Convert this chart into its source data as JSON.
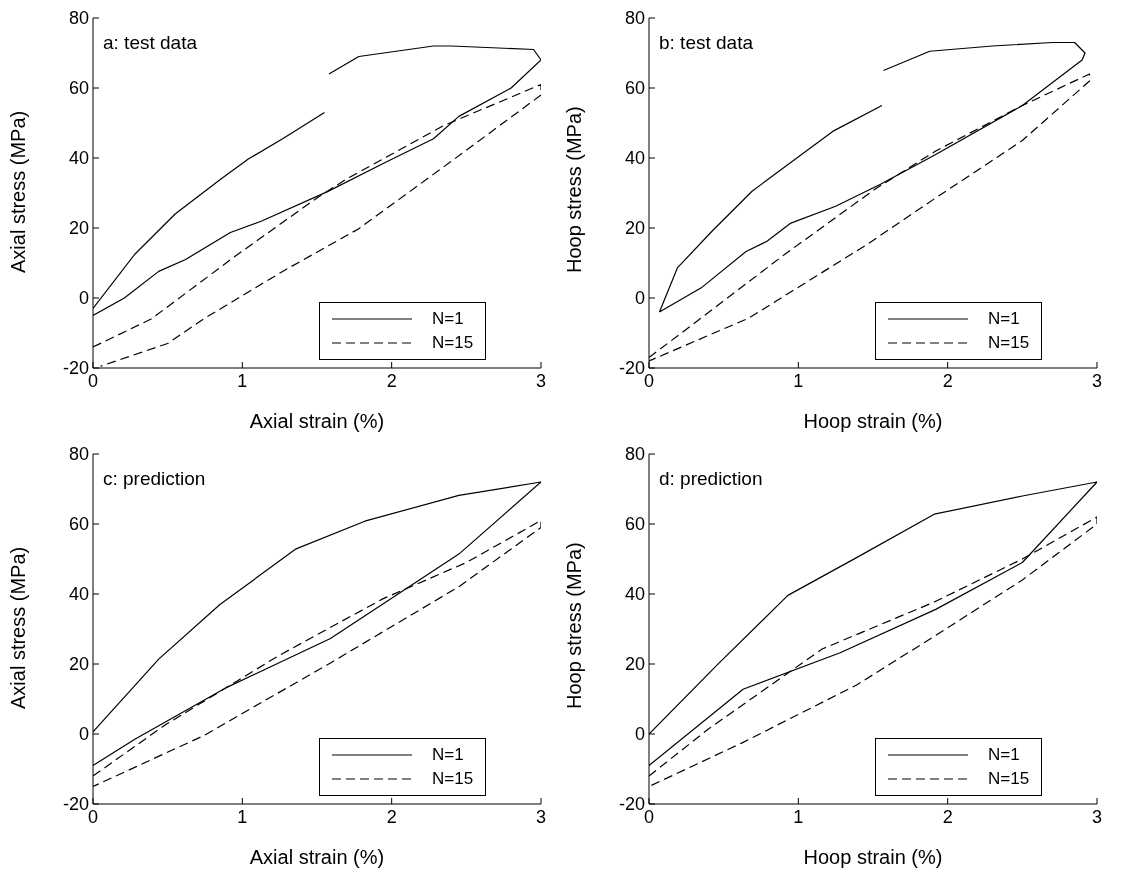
{
  "chart_data": [
    {
      "type": "line",
      "title": "a: test data",
      "xlabel": "Axial strain (%)",
      "ylabel": "Axial stress (MPa)",
      "xlim": [
        0,
        3
      ],
      "xticks": [
        0,
        1,
        2,
        3
      ],
      "ylim": [
        -20,
        80
      ],
      "yticks": [
        -20,
        0,
        20,
        40,
        60,
        80
      ],
      "legend": "bottom right",
      "series": [
        {
          "name": "N=1",
          "color": "#000000",
          "line_style": "solid",
          "x": [
            0,
            0.21,
            0.44,
            0.62,
            0.92,
            1.13,
            1.57,
            1.96,
            2.28,
            2.45,
            2.8,
            3.0,
            2.95,
            2.4,
            2.28,
            1.78,
            1.58,
            null,
            1.55,
            1.27,
            1.04,
            0.85,
            0.55,
            0.28,
            0
          ],
          "values": [
            -5,
            0,
            7.6,
            11,
            18.7,
            22,
            30.4,
            38.8,
            45.5,
            51.9,
            60,
            68,
            71,
            72,
            72,
            69,
            64,
            null,
            53,
            45.5,
            39.7,
            33.8,
            24,
            12.5,
            -3
          ]
        },
        {
          "name": "N=15",
          "color": "#000000",
          "line_style": "dashed",
          "x": [
            0,
            0.39,
            0.97,
            1.5,
            1.69,
            2.35,
            3.0,
            3.0,
            2.42,
            1.78,
            1.27,
            0.74,
            0.5,
            0.05
          ],
          "values": [
            -14,
            -6,
            12.5,
            28.6,
            33.8,
            49.3,
            61,
            58,
            39.7,
            19.8,
            7.6,
            -6,
            -13,
            -19.5
          ]
        }
      ]
    },
    {
      "type": "line",
      "title": "b: test data",
      "xlabel": "Hoop strain (%)",
      "ylabel": "Hoop stress (MPa)",
      "xlim": [
        0,
        3
      ],
      "xticks": [
        0,
        1,
        2,
        3
      ],
      "ylim": [
        -20,
        80
      ],
      "yticks": [
        -20,
        0,
        20,
        40,
        60,
        80
      ],
      "legend": "bottom right",
      "series": [
        {
          "name": "N=1",
          "color": "#000000",
          "line_style": "solid",
          "x": [
            0.07,
            0.35,
            0.65,
            0.79,
            0.95,
            1.25,
            1.55,
            1.92,
            2.5,
            2.9,
            2.92,
            2.85,
            2.7,
            2.3,
            1.88,
            1.57,
            null,
            1.56,
            1.23,
            0.69,
            0.42,
            0.19,
            0.07
          ],
          "values": [
            -4,
            2.9,
            13.3,
            16.2,
            21.4,
            26.2,
            32.5,
            41,
            55,
            68,
            70,
            73,
            73,
            72,
            70.5,
            65,
            null,
            55,
            47.6,
            30.5,
            19,
            8.6,
            -4
          ]
        },
        {
          "name": "N=15",
          "color": "#000000",
          "line_style": "dashed",
          "x": [
            0,
            0.35,
            0.91,
            1.51,
            1.92,
            2.5,
            2.95,
            2.95,
            2.5,
            1.92,
            1.46,
            0.67,
            0
          ],
          "values": [
            -17,
            -5.7,
            12.5,
            31,
            42,
            55,
            64,
            62,
            45,
            28.6,
            15.3,
            -5.7,
            -18
          ]
        }
      ]
    },
    {
      "type": "line",
      "title": "c: prediction",
      "xlabel": "Axial strain (%)",
      "ylabel": "Axial stress (MPa)",
      "xlim": [
        0,
        3
      ],
      "xticks": [
        0,
        1,
        2,
        3
      ],
      "ylim": [
        -20,
        80
      ],
      "yticks": [
        -20,
        0,
        20,
        40,
        60,
        80
      ],
      "legend": "bottom right",
      "series": [
        {
          "name": "N=1",
          "color": "#000000",
          "line_style": "solid",
          "x": [
            0,
            0.44,
            0.85,
            1.36,
            1.82,
            2.45,
            3.0,
            2.45,
            1.59,
            0.9,
            0.28,
            0
          ],
          "values": [
            0.6,
            21.4,
            37,
            52.9,
            60.8,
            68.2,
            72,
            51.4,
            27.3,
            13.4,
            -1.5,
            -9
          ]
        },
        {
          "name": "N=15",
          "color": "#000000",
          "line_style": "dashed",
          "x": [
            0,
            0.48,
            1.24,
            1.94,
            2.5,
            3.0,
            3.0,
            2.45,
            1.59,
            0.74,
            0
          ],
          "values": [
            -12,
            2.5,
            22.3,
            38.6,
            49,
            61,
            59,
            42.1,
            20.3,
            -0.5,
            -15
          ]
        }
      ]
    },
    {
      "type": "line",
      "title": "d: prediction",
      "xlabel": "Hoop strain (%)",
      "ylabel": "Hoop stress (MPa)",
      "xlim": [
        0,
        3
      ],
      "xticks": [
        0,
        1,
        2,
        3
      ],
      "ylim": [
        -20,
        80
      ],
      "yticks": [
        -20,
        0,
        20,
        40,
        60,
        80
      ],
      "legend": "bottom right",
      "series": [
        {
          "name": "N=1",
          "color": "#000000",
          "line_style": "solid",
          "x": [
            0,
            0.47,
            0.93,
            1.39,
            1.91,
            2.5,
            3.0,
            2.5,
            1.92,
            1.28,
            0.63,
            0
          ],
          "values": [
            0,
            20.3,
            39.6,
            50.4,
            62.8,
            68,
            72,
            49,
            35.6,
            23.2,
            12.8,
            -9
          ]
        },
        {
          "name": "N=15",
          "color": "#000000",
          "line_style": "dashed",
          "x": [
            0,
            0.4,
            1.16,
            1.91,
            2.5,
            3.0,
            3.0,
            2.5,
            1.91,
            1.39,
            0.63,
            0
          ],
          "values": [
            -12,
            1.5,
            24.3,
            37.7,
            50,
            62,
            60,
            44,
            27.9,
            14,
            -2.4,
            -15
          ]
        }
      ]
    }
  ]
}
